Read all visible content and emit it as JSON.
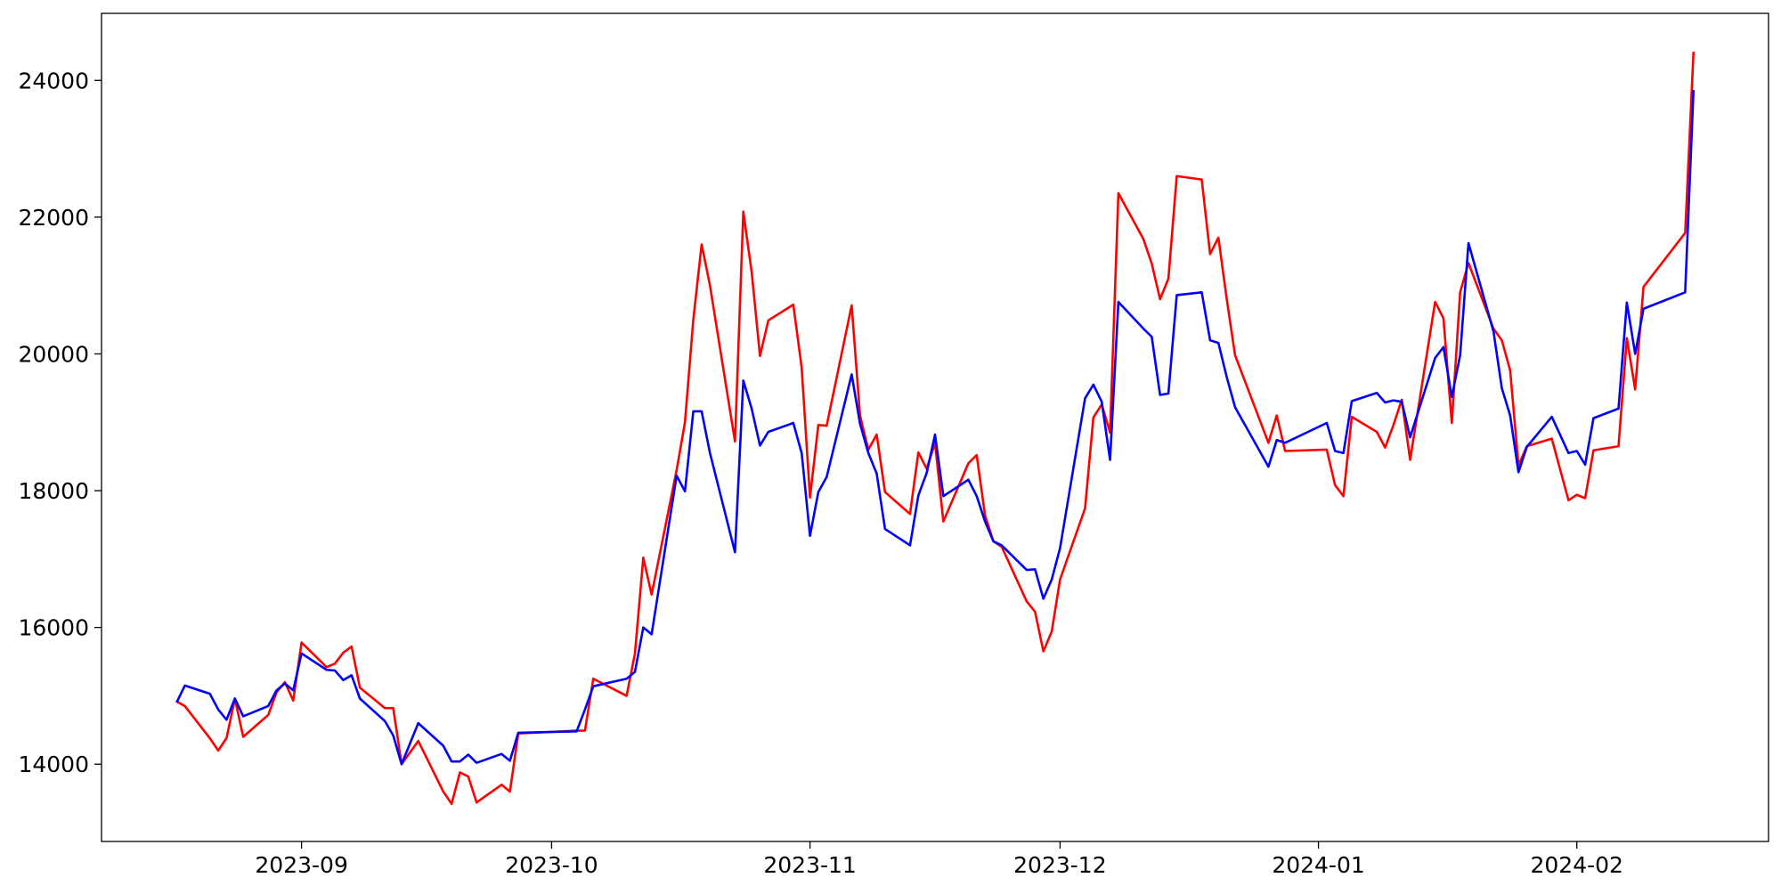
{
  "chart_data": {
    "type": "line",
    "x": [
      19586,
      19587,
      19590,
      19591,
      19592,
      19593,
      19594,
      19597,
      19598,
      19599,
      19600,
      19601,
      19604,
      19605,
      19606,
      19607,
      19608,
      19611,
      19612,
      19613,
      19615,
      19618,
      19619,
      19620,
      19621,
      19622,
      19625,
      19626,
      19627,
      19634,
      19635,
      19636,
      19640,
      19641,
      19642,
      19643,
      19646,
      19647,
      19648,
      19649,
      19650,
      19653,
      19654,
      19655,
      19656,
      19657,
      19660,
      19661,
      19662,
      19663,
      19664,
      19667,
      19668,
      19669,
      19670,
      19671,
      19674,
      19675,
      19676,
      19677,
      19678,
      19681,
      19682,
      19683,
      19684,
      19685,
      19688,
      19689,
      19690,
      19691,
      19692,
      19695,
      19696,
      19697,
      19698,
      19699,
      19702,
      19703,
      19704,
      19705,
      19706,
      19709,
      19710,
      19711,
      19712,
      19713,
      19717,
      19718,
      19719,
      19724,
      19725,
      19726,
      19727,
      19730,
      19731,
      19732,
      19733,
      19734,
      19737,
      19738,
      19739,
      19740,
      19741,
      19744,
      19745,
      19746,
      19747,
      19748,
      19751,
      19753,
      19754,
      19755,
      19756,
      19759,
      19760,
      19761,
      19762,
      19767,
      19768
    ],
    "series": [
      {
        "color": "#ff0000",
        "values": [
          14920,
          14850,
          14380,
          14200,
          14380,
          14960,
          14400,
          14720,
          15050,
          15200,
          14930,
          15780,
          15420,
          15470,
          15630,
          15720,
          15120,
          14820,
          14820,
          14000,
          14340,
          13600,
          13420,
          13880,
          13820,
          13440,
          13700,
          13600,
          14450,
          14490,
          14490,
          15250,
          15000,
          15620,
          17020,
          16480,
          18300,
          19000,
          20500,
          21600,
          21000,
          18720,
          22080,
          21200,
          19970,
          20490,
          20720,
          19800,
          17900,
          18960,
          18950,
          20710,
          19100,
          18600,
          18820,
          17980,
          17660,
          18560,
          18320,
          18700,
          17550,
          18400,
          18520,
          17640,
          17260,
          17180,
          16380,
          16230,
          15650,
          15940,
          16700,
          17740,
          19070,
          19260,
          18850,
          22350,
          21680,
          21320,
          20800,
          21100,
          22600,
          22550,
          21460,
          21700,
          20800,
          19980,
          18700,
          19100,
          18580,
          18600,
          18080,
          17920,
          19080,
          18860,
          18630,
          18960,
          19330,
          18450,
          20760,
          20520,
          18990,
          20900,
          21330,
          20370,
          20200,
          19760,
          18370,
          18650,
          18760,
          17860,
          17940,
          17890,
          18590,
          18650,
          20230,
          19480,
          20980,
          21770,
          24420
        ]
      },
      {
        "color": "#0000ff",
        "values": [
          14900,
          15150,
          15030,
          14800,
          14650,
          14960,
          14700,
          14850,
          15080,
          15180,
          15080,
          15620,
          15380,
          15370,
          15230,
          15300,
          14960,
          14630,
          14420,
          14000,
          14600,
          14270,
          14040,
          14040,
          14140,
          14020,
          14150,
          14050,
          14460,
          14480,
          14800,
          15140,
          15250,
          15350,
          16000,
          15900,
          18220,
          17990,
          19160,
          19160,
          18550,
          17100,
          19610,
          19200,
          18660,
          18860,
          18990,
          18550,
          17340,
          17980,
          18200,
          19700,
          18980,
          18550,
          18250,
          17440,
          17200,
          17930,
          18260,
          18820,
          17920,
          18160,
          17920,
          17550,
          17260,
          17200,
          16840,
          16850,
          16420,
          16700,
          17160,
          19350,
          19550,
          19300,
          18450,
          20760,
          20370,
          20250,
          19400,
          19420,
          20860,
          20900,
          20200,
          20160,
          19660,
          19220,
          18350,
          18740,
          18700,
          18990,
          18580,
          18550,
          19310,
          19430,
          19290,
          19320,
          19300,
          18780,
          19940,
          20100,
          19370,
          19980,
          21620,
          20330,
          19500,
          19100,
          18270,
          18640,
          19080,
          18550,
          18580,
          18380,
          19060,
          19200,
          20750,
          20000,
          20660,
          20900,
          23860
        ]
      }
    ],
    "xlim": [
      19577,
      19777
    ],
    "xticks": [
      {
        "value": 19601,
        "label": "2023-09"
      },
      {
        "value": 19631,
        "label": "2023-10"
      },
      {
        "value": 19662,
        "label": "2023-11"
      },
      {
        "value": 19692,
        "label": "2023-12"
      },
      {
        "value": 19723,
        "label": "2024-01"
      },
      {
        "value": 19754,
        "label": "2024-02"
      }
    ],
    "ylim": [
      12870,
      24980
    ],
    "yticks": [
      14000,
      16000,
      18000,
      20000,
      22000,
      24000
    ],
    "grid": false
  }
}
